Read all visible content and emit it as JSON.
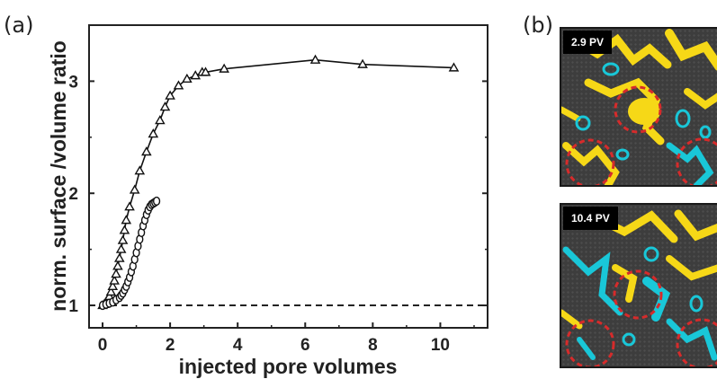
{
  "panels": {
    "a_label": "(a)",
    "b_label": "(b)"
  },
  "chart_data": {
    "type": "scatter",
    "xlabel": "injected pore volumes",
    "ylabel": "norm. surface /volume ratio",
    "xlim": [
      -0.4,
      11.4
    ],
    "ylim": [
      0.8,
      3.5
    ],
    "xticks": [
      "0",
      "2",
      "4",
      "6",
      "8",
      "10"
    ],
    "yticks": [
      "1",
      "2",
      "3"
    ],
    "reference_line": {
      "y": 1,
      "style": "dashed"
    },
    "series": [
      {
        "marker": "triangle",
        "connected": true,
        "x": [
          0,
          0.05,
          0.1,
          0.15,
          0.2,
          0.25,
          0.3,
          0.35,
          0.4,
          0.45,
          0.5,
          0.55,
          0.6,
          0.65,
          0.7,
          0.8,
          0.95,
          1.1,
          1.3,
          1.5,
          1.7,
          1.85,
          2.0,
          2.25,
          2.5,
          2.75,
          2.95,
          3.05,
          3.6,
          6.3,
          7.7,
          10.4
        ],
        "y": [
          1.0,
          1.01,
          1.03,
          1.05,
          1.08,
          1.12,
          1.17,
          1.22,
          1.28,
          1.35,
          1.42,
          1.5,
          1.58,
          1.67,
          1.76,
          1.88,
          2.03,
          2.2,
          2.37,
          2.53,
          2.65,
          2.77,
          2.87,
          2.96,
          3.02,
          3.05,
          3.08,
          3.08,
          3.11,
          3.19,
          3.15,
          3.12
        ]
      },
      {
        "marker": "circle",
        "connected": true,
        "x": [
          0,
          0.1,
          0.2,
          0.3,
          0.4,
          0.5,
          0.55,
          0.6,
          0.65,
          0.7,
          0.75,
          0.8,
          0.85,
          0.9,
          0.95,
          1.0,
          1.05,
          1.1,
          1.15,
          1.2,
          1.25,
          1.3,
          1.35,
          1.4,
          1.45,
          1.5,
          1.55,
          1.6
        ],
        "y": [
          1.0,
          1.01,
          1.02,
          1.03,
          1.05,
          1.07,
          1.09,
          1.11,
          1.14,
          1.17,
          1.21,
          1.25,
          1.3,
          1.35,
          1.41,
          1.47,
          1.53,
          1.59,
          1.65,
          1.71,
          1.76,
          1.81,
          1.85,
          1.88,
          1.9,
          1.91,
          1.92,
          1.93
        ]
      }
    ]
  },
  "micrographs": [
    {
      "label": "2.9 PV"
    },
    {
      "label": "10.4 PV"
    }
  ],
  "colors": {
    "solid": "#f6d817",
    "fluid": "#19c7d8",
    "highlight": "#d62b2b",
    "pore": "#3d3d3d"
  }
}
